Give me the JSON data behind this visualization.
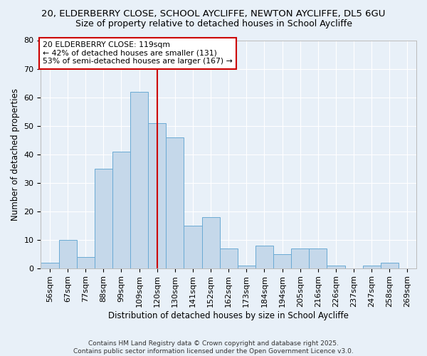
{
  "title_line1": "20, ELDERBERRY CLOSE, SCHOOL AYCLIFFE, NEWTON AYCLIFFE, DL5 6GU",
  "title_line2": "Size of property relative to detached houses in School Aycliffe",
  "xlabel": "Distribution of detached houses by size in School Aycliffe",
  "ylabel": "Number of detached properties",
  "categories": [
    "56sqm",
    "67sqm",
    "77sqm",
    "88sqm",
    "99sqm",
    "109sqm",
    "120sqm",
    "130sqm",
    "141sqm",
    "152sqm",
    "162sqm",
    "173sqm",
    "184sqm",
    "194sqm",
    "205sqm",
    "216sqm",
    "226sqm",
    "237sqm",
    "247sqm",
    "258sqm",
    "269sqm"
  ],
  "values": [
    2,
    10,
    4,
    35,
    41,
    62,
    51,
    46,
    15,
    18,
    7,
    1,
    8,
    5,
    7,
    7,
    1,
    0,
    1,
    2,
    0
  ],
  "bar_color": "#c5d8ea",
  "bar_edge_color": "#6aaad4",
  "vline_x": 6.0,
  "vline_color": "#cc0000",
  "annotation_text": "20 ELDERBERRY CLOSE: 119sqm\n← 42% of detached houses are smaller (131)\n53% of semi-detached houses are larger (167) →",
  "annotation_box_color": "#ffffff",
  "annotation_box_edge": "#cc0000",
  "footer_text": "Contains HM Land Registry data © Crown copyright and database right 2025.\nContains public sector information licensed under the Open Government Licence v3.0.",
  "bg_color": "#e8f0f8",
  "ylim": [
    0,
    80
  ],
  "yticks": [
    0,
    10,
    20,
    30,
    40,
    50,
    60,
    70,
    80
  ],
  "grid_color": "#ffffff",
  "title_fontsize": 9.5,
  "subtitle_fontsize": 9.0,
  "axis_font_size": 8.5,
  "tick_fontsize": 8.0,
  "annotation_fontsize": 7.8,
  "footer_fontsize": 6.5
}
